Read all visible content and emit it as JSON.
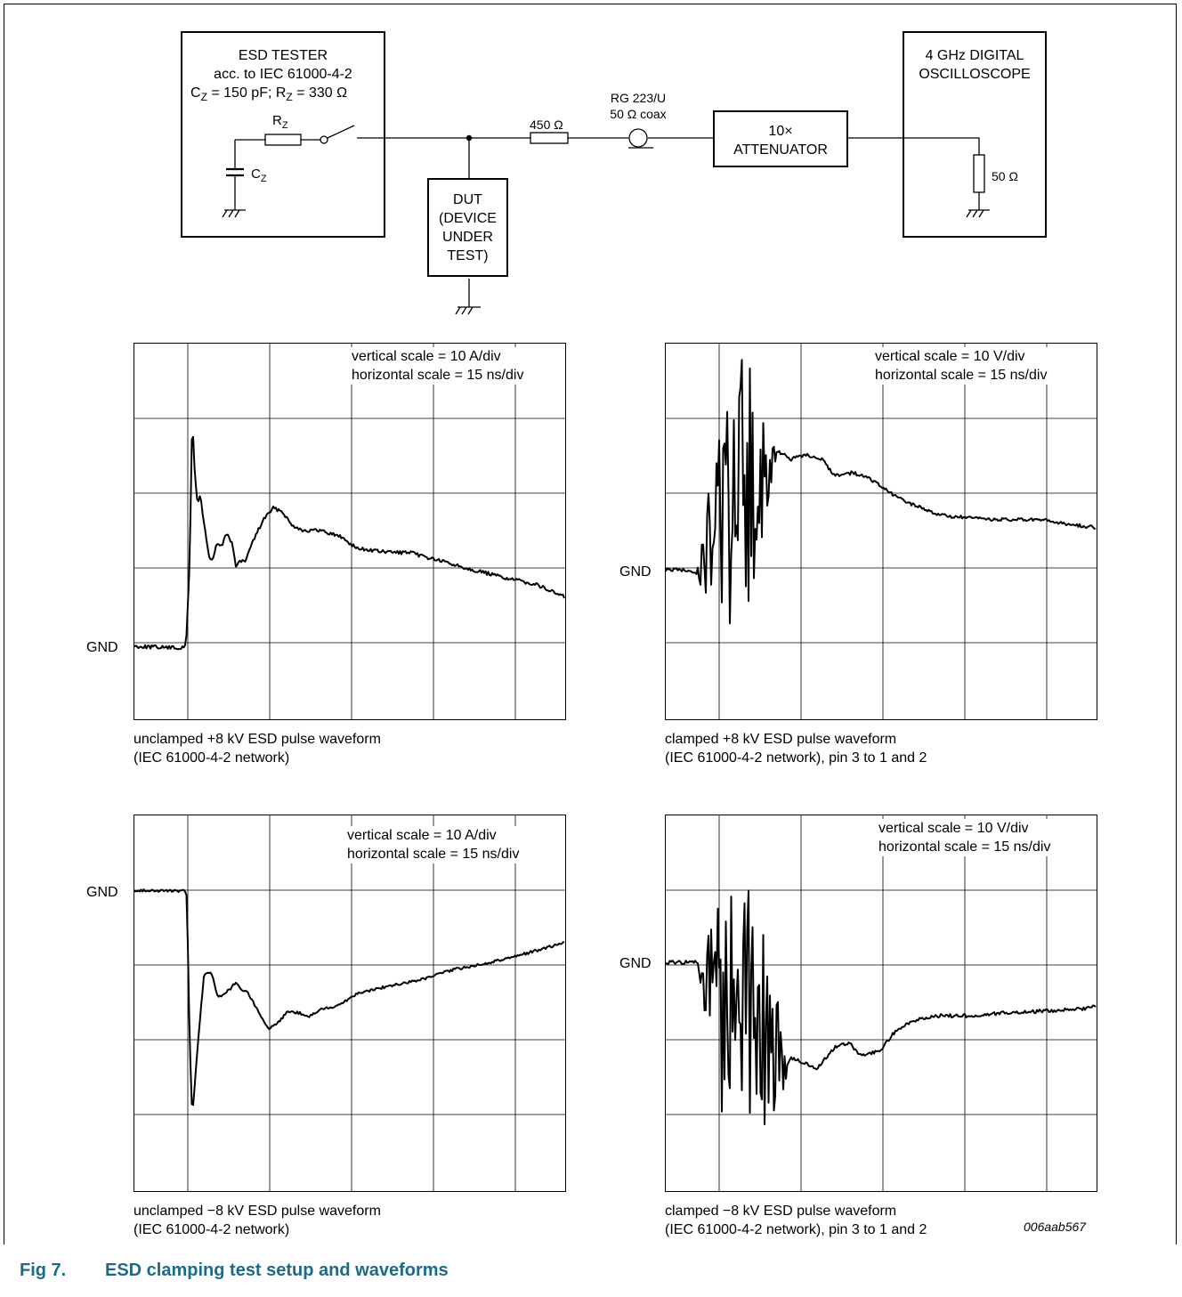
{
  "schematic": {
    "tester": {
      "title": "ESD TESTER",
      "standard": "acc. to IEC 61000-4-2",
      "cz_value": "= 150 pF;",
      "rz_value": "= 330 Ω",
      "rz_label": "R",
      "cz_label": "C",
      "sub": "Z"
    },
    "dut": [
      "DUT",
      "(DEVICE",
      "UNDER",
      "TEST)"
    ],
    "resistor": "450 Ω",
    "coax": [
      "RG 223/U",
      "50 Ω coax"
    ],
    "attenuator": [
      "10×",
      "ATTENUATOR"
    ],
    "oscilloscope": [
      "4 GHz DIGITAL",
      "OSCILLOSCOPE"
    ],
    "load": "50 Ω"
  },
  "plots": [
    {
      "id": "unclamped-positive",
      "scale_lines": [
        "vertical scale = 10 A/div",
        "horizontal scale = 15 ns/div"
      ],
      "gnd_label": "GND",
      "caption": [
        "unclamped +8 kV ESD pulse waveform",
        "(IEC 61000-4-2 network)"
      ]
    },
    {
      "id": "clamped-positive",
      "scale_lines": [
        "vertical scale = 10 V/div",
        "horizontal scale = 15 ns/div"
      ],
      "gnd_label": "GND",
      "caption": [
        "clamped +8 kV ESD pulse waveform",
        "(IEC 61000-4-2 network), pin 3 to 1 and 2"
      ]
    },
    {
      "id": "unclamped-negative",
      "scale_lines": [
        "vertical scale = 10 A/div",
        "horizontal scale = 15 ns/div"
      ],
      "gnd_label": "GND",
      "caption": [
        "unclamped −8 kV ESD pulse waveform",
        "(IEC 61000-4-2 network)"
      ]
    },
    {
      "id": "clamped-negative",
      "scale_lines": [
        "vertical scale = 10 V/div",
        "horizontal scale = 15 ns/div"
      ],
      "gnd_label": "GND",
      "caption": [
        "clamped −8 kV ESD pulse waveform",
        "(IEC 61000-4-2 network), pin 3 to 1 and 2"
      ]
    }
  ],
  "figure": {
    "number": "Fig 7.",
    "title": "ESD clamping test setup and waveforms",
    "code": "006aab567"
  },
  "colors": {
    "title": "#1d6a86",
    "line": "#000000"
  }
}
